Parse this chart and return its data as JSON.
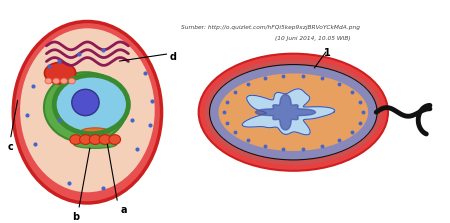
{
  "bg_color": "#ffffff",
  "source_text": "Sumber: http://o.quizlet.com/hFQi5kep9xzjBRVoYCkMdA.png",
  "date_text": "(10 Juni 2014, 10.05 WIB)",
  "label_a": "a",
  "label_b": "b",
  "label_c": "c",
  "label_d": "d",
  "label_1": "1",
  "euk_outer_fill": "#e85050",
  "euk_outer_edge": "#cc2020",
  "euk_cyto_fill": "#f5d0b8",
  "euk_green_fill": "#5aab45",
  "euk_green_edge": "#3a8a30",
  "euk_nuc_fill": "#85cce8",
  "euk_nuc_edge": "#c87840",
  "euk_nuc_ring_edge": "#3a8a30",
  "euk_nucleolus_fill": "#5050cc",
  "euk_golgi_fill": "#e85030",
  "euk_golgi_edge": "#cc2010",
  "euk_mito_fill": "#8b1a55",
  "euk_blob_fill": "#dd3525",
  "euk_blob_edge": "#bb2010",
  "euk_dot_color": "#4466cc",
  "prok_outer_fill": "#e84040",
  "prok_mid_fill": "#cc5050",
  "prok_inner_fill": "#e8a060",
  "prok_black_edge": "#111111",
  "prok_mem_edge": "#8888bb",
  "prok_nuc_fill": "#b8d8f0",
  "prok_nuc_edge": "#4455aa",
  "prok_dna_fill": "#4455aa",
  "prok_dot_color": "#4466cc",
  "flagellum_color": "#111111"
}
